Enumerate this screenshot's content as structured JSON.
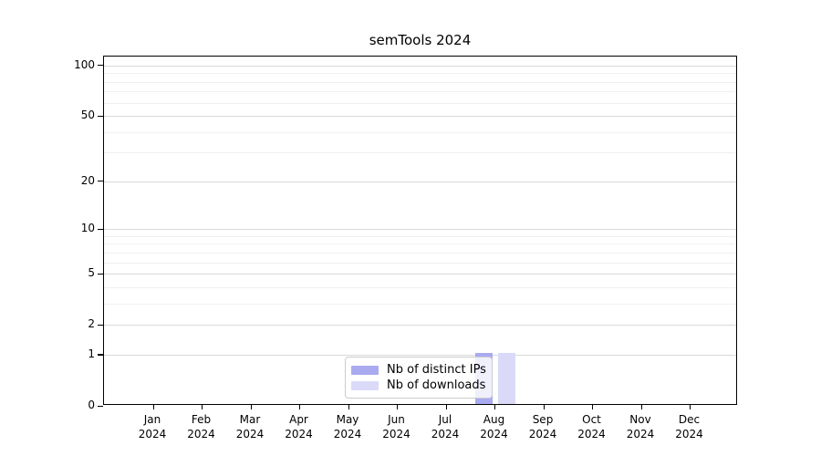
{
  "chart_data": {
    "type": "bar",
    "title": "semTools 2024",
    "categories": [
      "Jan 2024",
      "Feb 2024",
      "Mar 2024",
      "Apr 2024",
      "May 2024",
      "Jun 2024",
      "Jul 2024",
      "Aug 2024",
      "Sep 2024",
      "Oct 2024",
      "Nov 2024",
      "Dec 2024"
    ],
    "series": [
      {
        "name": "Nb of distinct IPs",
        "color": "#aaaaf0",
        "values": [
          0,
          0,
          0,
          0,
          0,
          0,
          0,
          1,
          0,
          0,
          0,
          0
        ]
      },
      {
        "name": "Nb of downloads",
        "color": "#dadaf8",
        "values": [
          0,
          0,
          0,
          0,
          0,
          0,
          0,
          1,
          0,
          0,
          0,
          0
        ]
      }
    ],
    "yscale": "log1p",
    "ylim": [
      0,
      113
    ],
    "y_major_ticks": [
      0,
      1,
      2,
      5,
      10,
      20,
      50,
      100
    ],
    "y_minor_gridlines": [
      3,
      4,
      6,
      7,
      8,
      9,
      30,
      40,
      60,
      70,
      80,
      90
    ],
    "xlabel": "",
    "ylabel": "",
    "grid": "horizontal",
    "legend_position": "bottom-center"
  }
}
